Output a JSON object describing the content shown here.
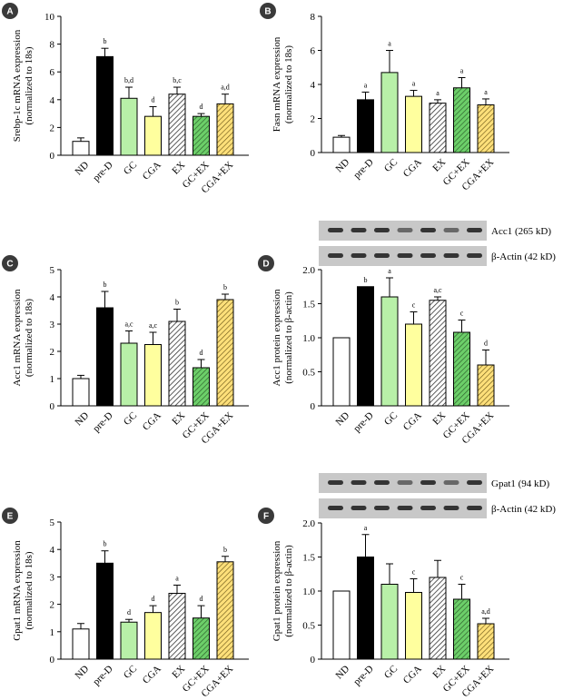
{
  "colors": {
    "ND": "#ffffff",
    "pre-D": "#000000",
    "GC": "#b8f0a8",
    "CGA": "#ffff9e",
    "EX": "#ffffff",
    "GC+EX": "#6ccf69",
    "CGA+EX": "#ffe07a",
    "panel_circle": "#3a3a3a"
  },
  "panels": [
    {
      "label": "A",
      "blot": null,
      "chart_data": {
        "type": "bar",
        "ylabel": "Srebp-1c mRNA expression (normalized to 18s)",
        "ylabel_lines": [
          "Srebp-1c mRNA expression",
          "(normalized to 18s)"
        ],
        "ylim": [
          0,
          10
        ],
        "yticks": [
          "0",
          "2",
          "4",
          "6",
          "8",
          "10"
        ],
        "categories": [
          "ND",
          "pre-D",
          "GC",
          "CGA",
          "EX",
          "GC+EX",
          "CGA+EX"
        ],
        "values": [
          1.0,
          7.1,
          4.1,
          2.8,
          4.4,
          2.8,
          3.7
        ],
        "errors": [
          0.25,
          0.6,
          0.8,
          0.7,
          0.5,
          0.2,
          0.7
        ],
        "annotations": [
          "",
          "b",
          "b,d",
          "d",
          "b,c",
          "d",
          "a,d"
        ]
      }
    },
    {
      "label": "B",
      "blot": null,
      "chart_data": {
        "type": "bar",
        "ylabel": "Fasn mRNA expression (normalized to 18s)",
        "ylabel_lines": [
          "Fasn mRNA expression",
          "(normalized to 18s)"
        ],
        "ylim": [
          0,
          8
        ],
        "yticks": [
          "0",
          "2",
          "4",
          "6",
          "8"
        ],
        "categories": [
          "ND",
          "pre-D",
          "GC",
          "CGA",
          "EX",
          "GC+EX",
          "CGA+EX"
        ],
        "values": [
          0.9,
          3.1,
          4.7,
          3.3,
          2.9,
          3.8,
          2.8
        ],
        "errors": [
          0.1,
          0.45,
          1.3,
          0.35,
          0.2,
          0.6,
          0.35
        ],
        "annotations": [
          "",
          "a",
          "a",
          "a",
          "a",
          "a",
          "a"
        ]
      }
    },
    {
      "label": "C",
      "blot": null,
      "chart_data": {
        "type": "bar",
        "ylabel": "Acc1 mRNA expression (normalized to 18s)",
        "ylabel_lines": [
          "Acc1 mRNA expression",
          "(normalized to 18s)"
        ],
        "ylim": [
          0,
          5
        ],
        "yticks": [
          "0",
          "1",
          "2",
          "3",
          "4",
          "5"
        ],
        "categories": [
          "ND",
          "pre-D",
          "GC",
          "CGA",
          "EX",
          "GC+EX",
          "CGA+EX"
        ],
        "values": [
          1.0,
          3.6,
          2.3,
          2.25,
          3.1,
          1.4,
          3.9
        ],
        "errors": [
          0.12,
          0.6,
          0.45,
          0.45,
          0.45,
          0.3,
          0.2
        ],
        "annotations": [
          "",
          "b",
          "a,c",
          "a,c",
          "b",
          "d",
          "b"
        ]
      }
    },
    {
      "label": "D",
      "blot": [
        "Acc1 (265 kD)",
        "β-Actin (42 kD)"
      ],
      "chart_data": {
        "type": "bar",
        "ylabel": "Acc1 protein expression (normalized to β-actin)",
        "ylabel_lines": [
          "Acc1 protein expression",
          "(normalized to β-actin)"
        ],
        "ylim": [
          0,
          2.0
        ],
        "yticks": [
          "0",
          "0.5",
          "1.0",
          "1.5",
          "2.0"
        ],
        "categories": [
          "ND",
          "pre-D",
          "GC",
          "CGA",
          "EX",
          "GC+EX",
          "CGA+EX"
        ],
        "values": [
          1.0,
          1.75,
          1.6,
          1.2,
          1.55,
          1.08,
          0.6
        ],
        "errors": [
          0,
          0,
          0.28,
          0.18,
          0.05,
          0.18,
          0.22
        ],
        "annotations": [
          "",
          "b",
          "a",
          "c",
          "a,c",
          "c",
          "d"
        ]
      }
    },
    {
      "label": "E",
      "blot": null,
      "chart_data": {
        "type": "bar",
        "ylabel": "Gpat1 mRNA expression (normalized to 18s)",
        "ylabel_lines": [
          "Gpat1 mRNA expression",
          "(normalized to 18s)"
        ],
        "ylim": [
          0,
          5
        ],
        "yticks": [
          "0",
          "1",
          "2",
          "3",
          "4",
          "5"
        ],
        "categories": [
          "ND",
          "pre-D",
          "GC",
          "CGA",
          "EX",
          "GC+EX",
          "CGA+EX"
        ],
        "values": [
          1.1,
          3.5,
          1.35,
          1.7,
          2.4,
          1.5,
          3.55
        ],
        "errors": [
          0.2,
          0.45,
          0.1,
          0.25,
          0.3,
          0.45,
          0.2
        ],
        "annotations": [
          "",
          "b",
          "d",
          "d",
          "a",
          "d",
          "b"
        ]
      }
    },
    {
      "label": "F",
      "blot": [
        "Gpat1 (94 kD)",
        "β-Actin (42 kD)"
      ],
      "chart_data": {
        "type": "bar",
        "ylabel": "Gpat1 protein expression (normalized to β-actin)",
        "ylabel_lines": [
          "Gpat1 protein expression",
          "(normalized to β-actin)"
        ],
        "ylim": [
          0,
          2.0
        ],
        "yticks": [
          "0",
          "0.5",
          "1.0",
          "1.5",
          "2.0"
        ],
        "categories": [
          "ND",
          "pre-D",
          "GC",
          "CGA",
          "EX",
          "GC+EX",
          "CGA+EX"
        ],
        "values": [
          1.0,
          1.5,
          1.1,
          0.98,
          1.2,
          0.88,
          0.52
        ],
        "errors": [
          0,
          0.33,
          0.3,
          0.2,
          0.25,
          0.22,
          0.08
        ],
        "annotations": [
          "",
          "a",
          "",
          "c",
          "",
          "c",
          "a,d"
        ]
      }
    }
  ]
}
